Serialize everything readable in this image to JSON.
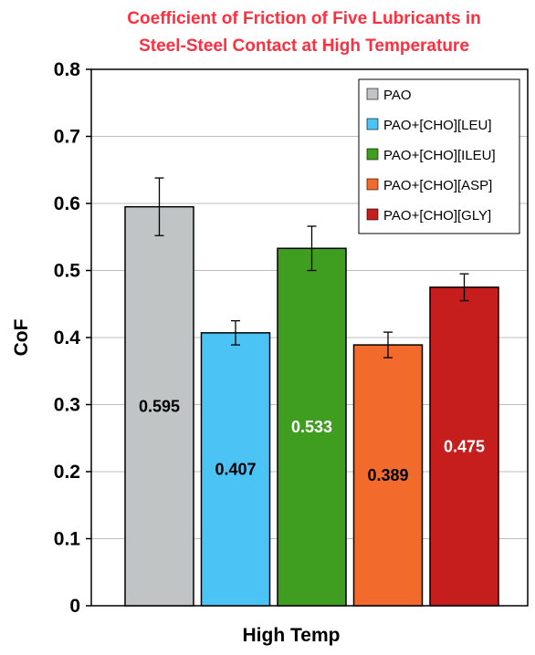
{
  "chart_data": {
    "type": "bar",
    "title_lines": [
      "Coefficient of Friction of Five Lubricants in",
      "Steel-Steel Contact at High Temperature"
    ],
    "xlabel": "High Temp",
    "ylabel": "CoF",
    "ylim": [
      0,
      0.8
    ],
    "yticks": [
      "0",
      "0.1",
      "0.2",
      "0.3",
      "0.4",
      "0.5",
      "0.6",
      "0.7",
      "0.8"
    ],
    "grid": true,
    "legend_position": "top-right",
    "series": [
      {
        "name": "PAO",
        "value": 0.595,
        "label": "0.595",
        "error": 0.043,
        "color": "#c0c4c4",
        "label_color": "#000000"
      },
      {
        "name": "PAO+[CHO][LEU]",
        "value": 0.407,
        "label": "0.407",
        "error": 0.018,
        "color": "#4cc3f5",
        "label_color": "#000000"
      },
      {
        "name": "PAO+[CHO][ILEU]",
        "value": 0.533,
        "label": "0.533",
        "error": 0.033,
        "color": "#3f9e1f",
        "label_color": "#ffffff"
      },
      {
        "name": "PAO+[CHO][ASP]",
        "value": 0.389,
        "label": "0.389",
        "error": 0.019,
        "color": "#f26a2c",
        "label_color": "#000000"
      },
      {
        "name": "PAO+[CHO][GLY]",
        "value": 0.475,
        "label": "0.475",
        "error": 0.02,
        "color": "#c61d1d",
        "label_color": "#ffffff"
      }
    ]
  }
}
